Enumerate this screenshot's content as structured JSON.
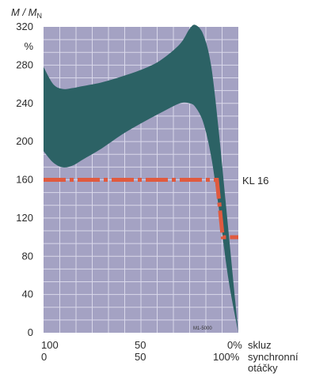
{
  "chart_data": {
    "type": "area",
    "ylabel": "M / M",
    "ylabel_sub": "N",
    "yunit": "%",
    "ylim": [
      0,
      320
    ],
    "yticks": [
      0,
      40,
      80,
      120,
      160,
      200,
      240,
      280,
      320
    ],
    "xticks_slip": [
      "100",
      "50",
      "0%"
    ],
    "xticks_speed": [
      "0",
      "50",
      "100%"
    ],
    "xlabel_slip": "skluz",
    "xlabel_speed_1": "synchronní",
    "xlabel_speed_2": "otáčky",
    "band": {
      "x": [
        0,
        5,
        10,
        15,
        20,
        30,
        40,
        50,
        60,
        70,
        75,
        78,
        82,
        86,
        90,
        95,
        100
      ],
      "upper": [
        278,
        260,
        255,
        256,
        258,
        262,
        268,
        275,
        285,
        302,
        318,
        322,
        312,
        280,
        210,
        105,
        0
      ],
      "lower": [
        190,
        178,
        173,
        175,
        181,
        193,
        207,
        219,
        230,
        240,
        240,
        236,
        220,
        185,
        130,
        55,
        0
      ]
    },
    "series": [
      {
        "name": "KL 16",
        "x": [
          0,
          88,
          89,
          92,
          93,
          100
        ],
        "y": [
          160,
          160,
          160,
          100,
          100,
          100
        ]
      }
    ],
    "watermark": "M1-5000"
  },
  "colors": {
    "grid_bg": "#a4a2c3",
    "grid_line": "#d9d8ea",
    "band": "#2c6265",
    "kl16": "#e05a3f"
  }
}
